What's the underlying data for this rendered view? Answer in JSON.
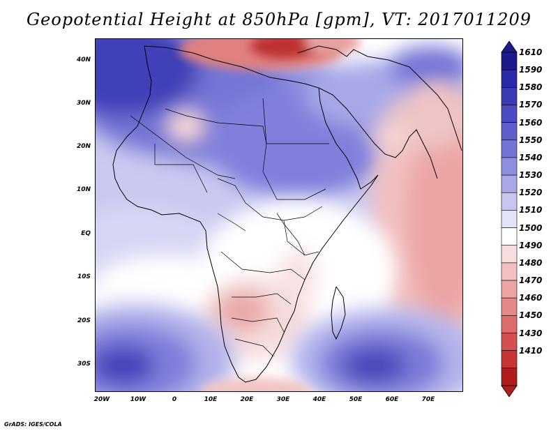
{
  "title": "Geopotential Height at 850hPa [gpm], VT: 2017011209",
  "credit": "GrADS: IGES/COLA",
  "map": {
    "variable": "Geopotential Height",
    "level": "850hPa",
    "units": "gpm",
    "valid_time": "2017011209",
    "lon_labels": [
      "20W",
      "10W",
      "0",
      "10E",
      "20E",
      "30E",
      "40E",
      "50E",
      "60E",
      "70E"
    ],
    "lat_labels": [
      "40N",
      "30N",
      "20N",
      "10N",
      "EQ",
      "10S",
      "20S",
      "30S"
    ]
  },
  "colorbar": {
    "labels": [
      "1610",
      "1590",
      "1580",
      "1570",
      "1560",
      "1550",
      "1540",
      "1530",
      "1520",
      "1510",
      "1500",
      "1490",
      "1480",
      "1470",
      "1460",
      "1450",
      "1430",
      "1410"
    ],
    "colors": [
      "#1a1a8c",
      "#2a2aa6",
      "#3a3ab5",
      "#4a4ac2",
      "#5e5ecc",
      "#7474d6",
      "#8e8ee0",
      "#a8a8e8",
      "#c6c6f0",
      "#e2e2f8",
      "#ffffff",
      "#f8dede",
      "#f2c0c0",
      "#eca4a4",
      "#e48888",
      "#dc6c6c",
      "#d45050",
      "#c63434",
      "#b01c1c"
    ]
  }
}
